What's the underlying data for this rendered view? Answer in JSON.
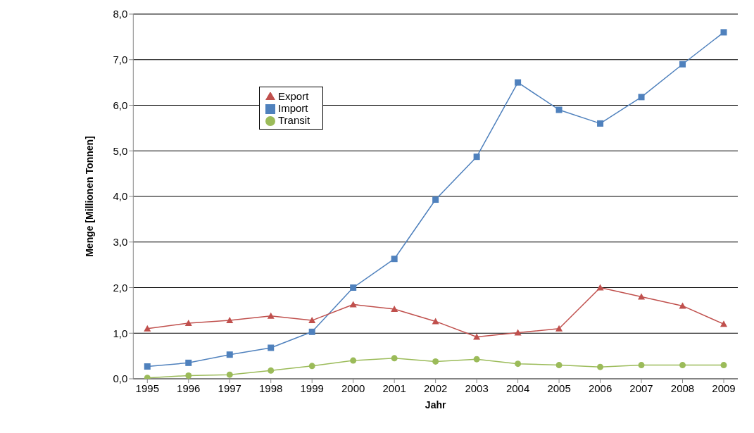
{
  "chart_data": {
    "type": "line",
    "xlabel": "Jahr",
    "ylabel": "Menge [Millionen Tonnen]",
    "categories": [
      "1995",
      "1996",
      "1997",
      "1998",
      "1999",
      "2000",
      "2001",
      "2002",
      "2003",
      "2004",
      "2005",
      "2006",
      "2007",
      "2008",
      "2009"
    ],
    "series": [
      {
        "name": "Import",
        "color": "#4f81bd",
        "marker": "square",
        "values": [
          0.27,
          0.35,
          0.53,
          0.68,
          1.03,
          2.0,
          2.63,
          3.93,
          4.87,
          6.5,
          5.9,
          5.6,
          6.18,
          6.9,
          7.6
        ]
      },
      {
        "name": "Export",
        "color": "#c0504d",
        "marker": "triangle",
        "values": [
          1.1,
          1.22,
          1.28,
          1.38,
          1.28,
          1.63,
          1.53,
          1.26,
          0.92,
          1.01,
          1.1,
          2.0,
          1.8,
          1.6,
          1.2
        ]
      },
      {
        "name": "Transit",
        "color": "#9bbb59",
        "marker": "circle",
        "values": [
          0.02,
          0.07,
          0.09,
          0.18,
          0.28,
          0.4,
          0.45,
          0.38,
          0.43,
          0.33,
          0.3,
          0.26,
          0.3,
          0.3,
          0.3
        ]
      }
    ],
    "ylim": [
      0,
      8
    ],
    "yticks": [
      {
        "value": 0,
        "label": "0,0"
      },
      {
        "value": 1,
        "label": "1,0"
      },
      {
        "value": 2,
        "label": "2,0"
      },
      {
        "value": 3,
        "label": "3,0"
      },
      {
        "value": 4,
        "label": "4,0"
      },
      {
        "value": 5,
        "label": "5,0"
      },
      {
        "value": 6,
        "label": "6,0"
      },
      {
        "value": 7,
        "label": "7,0"
      },
      {
        "value": 8,
        "label": "8,0"
      }
    ],
    "grid": "y",
    "legend": "top left",
    "line_style": "solid"
  }
}
